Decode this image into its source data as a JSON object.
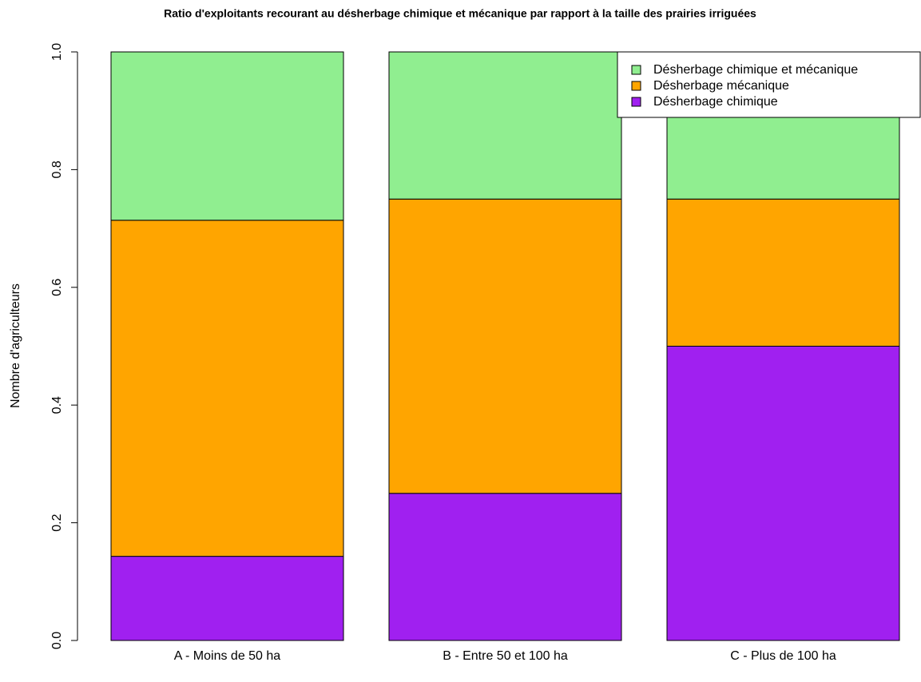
{
  "chart_data": {
    "type": "stacked_bar",
    "title": "Ratio d'exploitants recourant au désherbage chimique et mécanique par rapport à la taille des prairies irriguées",
    "y_label": "Nombre d'agriculteurs",
    "categories": [
      "A - Moins de 50 ha",
      "B - Entre 50 et 100 ha",
      "C - Plus de 100 ha"
    ],
    "series": [
      {
        "name": "Désherbage chimique",
        "color": "#a020f0",
        "values": [
          0.143,
          0.25,
          0.5
        ]
      },
      {
        "name": "Désherbage mécanique",
        "color": "#ffa500",
        "values": [
          0.571,
          0.5,
          0.25
        ]
      },
      {
        "name": "Désherbage chimique et mécanique",
        "color": "#90ee90",
        "values": [
          0.286,
          0.25,
          0.25
        ]
      }
    ],
    "ylim": [
      0,
      1
    ],
    "yticks": [
      {
        "value": 0,
        "label": "0.0"
      },
      0.2,
      0.4,
      0.6,
      0.8,
      {
        "value": 1,
        "label": "1.0"
      }
    ],
    "legend": "topright"
  }
}
